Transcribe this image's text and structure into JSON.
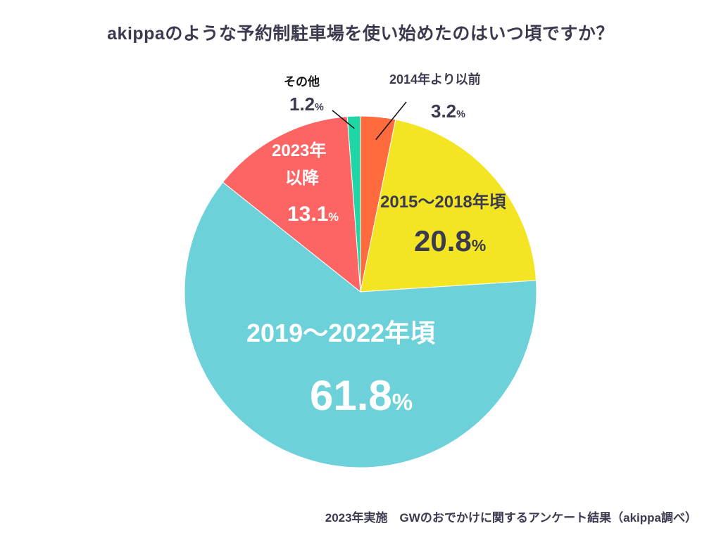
{
  "title": "akippaのような予約制駐車場を使い始めたのはいつ頃ですか？",
  "footer": "2023年実施　GWのおでかけに関するアンケート結果（akippa調べ）",
  "percent_sign": "%",
  "chart_data": {
    "type": "pie",
    "title": "akippaのような予約制駐車場を使い始めたのはいつ頃ですか？",
    "start": "12 o'clock",
    "direction": "clockwise",
    "slices": [
      {
        "label": "2014年より以前",
        "value": 3.2,
        "display": "3.2",
        "color": "#ff6b3d"
      },
      {
        "label": "2015〜2018年頃",
        "value": 20.8,
        "display": "20.8",
        "color": "#f3e524"
      },
      {
        "label": "2019〜2022年頃",
        "value": 61.8,
        "display": "61.8",
        "color": "#6dd1d9"
      },
      {
        "label": "2023年以降",
        "label_lines": [
          "2023年",
          "以降"
        ],
        "value": 13.1,
        "display": "13.1",
        "color": "#fd6565"
      },
      {
        "label": "その他",
        "value": 1.2,
        "display": "1.2",
        "color": "#1fd6a6"
      }
    ]
  }
}
